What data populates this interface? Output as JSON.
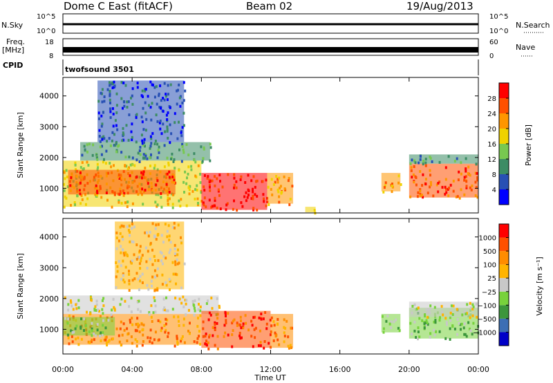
{
  "header": {
    "station": "Dome C East (fitACF)",
    "beam": "Beam 02",
    "date": "19/Aug/2013"
  },
  "strip_panels": {
    "nsky": {
      "label": "N.Sky",
      "left_ticks": [
        "10^5",
        "10^0"
      ],
      "right_label": "N.Search",
      "right_ticks": [
        "10^5",
        "10^0"
      ]
    },
    "freq": {
      "label_top": "Freq.",
      "label_unit": "[MHz]",
      "left_ticks": [
        "18",
        "8"
      ],
      "right_label": "Nave",
      "right_ticks": [
        "60",
        "0"
      ]
    },
    "cpid": {
      "label": "CPID",
      "program": "twofsound 3501"
    }
  },
  "chart_data": [
    {
      "type": "heatmap",
      "name": "power",
      "ylabel": "Slant Range [km]",
      "yticks": [
        "1000",
        "2000",
        "3000",
        "4000"
      ],
      "ylim": [
        200,
        4600
      ],
      "xlim": [
        0,
        24
      ],
      "colorbar_label": "Power [dB]",
      "colorbar_ticks": [
        "4",
        "8",
        "12",
        "16",
        "20",
        "24",
        "28"
      ],
      "colors": [
        "#0000ff",
        "#2850b4",
        "#3c8c64",
        "#78c850",
        "#f0d200",
        "#ff9600",
        "#ff5000",
        "#ff0000"
      ],
      "regions": [
        {
          "t0": 0.0,
          "t1": 8.0,
          "r0": 400,
          "r1": 1900,
          "level": 4
        },
        {
          "t0": 0.3,
          "t1": 6.5,
          "r0": 800,
          "r1": 1600,
          "level": 6
        },
        {
          "t0": 8.0,
          "t1": 11.8,
          "r0": 300,
          "r1": 1500,
          "level": 7
        },
        {
          "t0": 11.8,
          "t1": 13.3,
          "r0": 500,
          "r1": 1500,
          "level": 5
        },
        {
          "t0": 1.0,
          "t1": 8.5,
          "r0": 1900,
          "r1": 2500,
          "level": 2
        },
        {
          "t0": 2.0,
          "t1": 7.0,
          "r0": 2500,
          "r1": 4500,
          "level": 1
        },
        {
          "t0": 18.4,
          "t1": 19.5,
          "r0": 900,
          "r1": 1500,
          "level": 5
        },
        {
          "t0": 20.0,
          "t1": 24.0,
          "r0": 700,
          "r1": 1800,
          "level": 6
        },
        {
          "t0": 20.0,
          "t1": 24.0,
          "r0": 1800,
          "r1": 2100,
          "level": 2
        },
        {
          "t0": 14.0,
          "t1": 14.6,
          "r0": 220,
          "r1": 400,
          "level": 4
        }
      ]
    },
    {
      "type": "heatmap",
      "name": "velocity",
      "ylabel": "Slant Range [km]",
      "yticks": [
        "1000",
        "2000",
        "3000",
        "4000"
      ],
      "ylim": [
        200,
        4600
      ],
      "xlim": [
        0,
        24
      ],
      "xlabel": "Time UT",
      "xticks": [
        "00:00",
        "04:00",
        "08:00",
        "12:00",
        "16:00",
        "20:00",
        "00:00"
      ],
      "colorbar_label": "Velocity [m s⁻¹]",
      "colorbar_ticks": [
        "1000",
        "500",
        "100",
        "25",
        "−25",
        "−100",
        "−500",
        "−1000"
      ],
      "colors": [
        "#0000c8",
        "#3c6eb4",
        "#3c963c",
        "#78d23c",
        "#c8c8c8",
        "#ffb400",
        "#ff8c00",
        "#ff5000",
        "#ff0000"
      ],
      "regions": [
        {
          "t0": 0.0,
          "t1": 8.0,
          "r0": 500,
          "r1": 1500,
          "level": 6
        },
        {
          "t0": 0.0,
          "t1": 3.0,
          "r0": 800,
          "r1": 1400,
          "level": 3
        },
        {
          "t0": 0.0,
          "t1": 9.0,
          "r0": 1500,
          "r1": 2100,
          "level": 4
        },
        {
          "t0": 8.0,
          "t1": 12.0,
          "r0": 400,
          "r1": 1600,
          "level": 7
        },
        {
          "t0": 12.0,
          "t1": 13.3,
          "r0": 400,
          "r1": 1500,
          "level": 6
        },
        {
          "t0": 3.0,
          "t1": 7.0,
          "r0": 2300,
          "r1": 4500,
          "level": 5
        },
        {
          "t0": 18.4,
          "t1": 19.5,
          "r0": 900,
          "r1": 1500,
          "level": 3
        },
        {
          "t0": 20.0,
          "t1": 24.0,
          "r0": 700,
          "r1": 1700,
          "level": 3
        },
        {
          "t0": 20.0,
          "t1": 24.0,
          "r0": 1400,
          "r1": 1900,
          "level": 4
        }
      ]
    }
  ]
}
